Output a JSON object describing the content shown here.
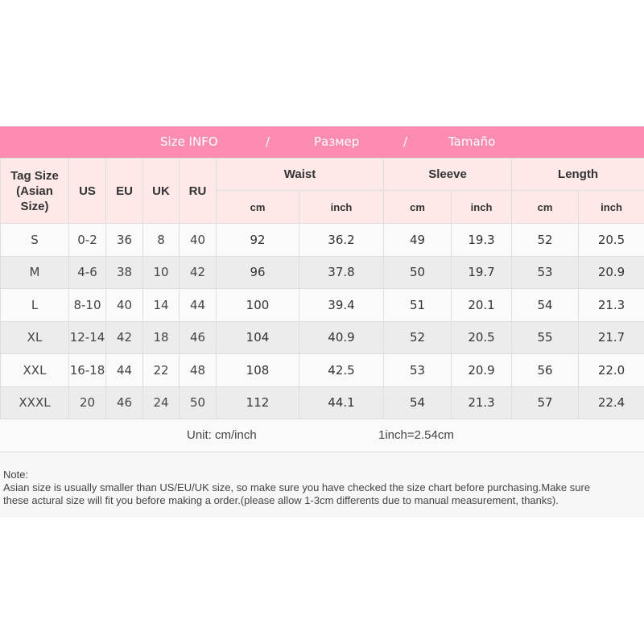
{
  "banner": {
    "items": [
      "Size INFO",
      "/",
      "Размер",
      "/",
      "Tamaño"
    ],
    "color": "#fd8cb3"
  },
  "headers": {
    "tag_size": "Tag Size",
    "tag_size_sub": "(Asian Size)",
    "us": "US",
    "eu": "EU",
    "uk": "UK",
    "ru": "RU",
    "waist": "Waist",
    "sleeve": "Sleeve",
    "length": "Length",
    "cm": "cm",
    "inch": "inch"
  },
  "rows": [
    {
      "tag": "S",
      "us": "0-2",
      "eu": "36",
      "uk": "8",
      "ru": "40",
      "waist_cm": "92",
      "waist_in": "36.2",
      "sleeve_cm": "49",
      "sleeve_in": "19.3",
      "length_cm": "52",
      "length_in": "20.5"
    },
    {
      "tag": "M",
      "us": "4-6",
      "eu": "38",
      "uk": "10",
      "ru": "42",
      "waist_cm": "96",
      "waist_in": "37.8",
      "sleeve_cm": "50",
      "sleeve_in": "19.7",
      "length_cm": "53",
      "length_in": "20.9"
    },
    {
      "tag": "L",
      "us": "8-10",
      "eu": "40",
      "uk": "14",
      "ru": "44",
      "waist_cm": "100",
      "waist_in": "39.4",
      "sleeve_cm": "51",
      "sleeve_in": "20.1",
      "length_cm": "54",
      "length_in": "21.3"
    },
    {
      "tag": "XL",
      "us": "12-14",
      "eu": "42",
      "uk": "18",
      "ru": "46",
      "waist_cm": "104",
      "waist_in": "40.9",
      "sleeve_cm": "52",
      "sleeve_in": "20.5",
      "length_cm": "55",
      "length_in": "21.7"
    },
    {
      "tag": "XXL",
      "us": "16-18",
      "eu": "44",
      "uk": "22",
      "ru": "48",
      "waist_cm": "108",
      "waist_in": "42.5",
      "sleeve_cm": "53",
      "sleeve_in": "20.9",
      "length_cm": "56",
      "length_in": "22.0"
    },
    {
      "tag": "XXXL",
      "us": "20",
      "eu": "46",
      "uk": "24",
      "ru": "50",
      "waist_cm": "112",
      "waist_in": "44.1",
      "sleeve_cm": "54",
      "sleeve_in": "21.3",
      "length_cm": "57",
      "length_in": "22.4"
    }
  ],
  "unit": {
    "label": "Unit: cm/inch",
    "conversion": "1inch=2.54cm"
  },
  "note": {
    "title": "Note:",
    "line1": "Asian size is usually smaller than US/EU/UK size, so make sure you have checked the size chart before purchasing.Make sure",
    "line2": "these actural size will fit you before making a order.(please allow 1-3cm differents due to manual measurement, thanks)."
  }
}
